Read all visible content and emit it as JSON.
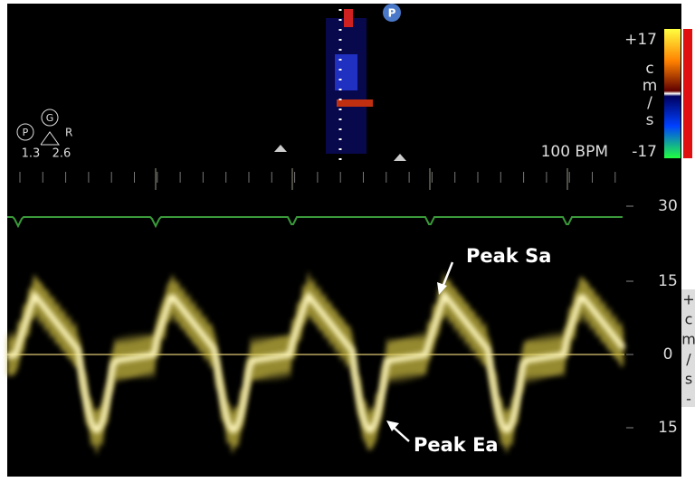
{
  "header": {
    "colorbar": {
      "max": "+17",
      "unit": [
        "c",
        "m",
        "/",
        "s"
      ],
      "min": "-17"
    },
    "heart_rate": "100 BPM",
    "probe": {
      "p": "P",
      "g": "G",
      "r": "R",
      "left": "1.3",
      "right": "2.6"
    },
    "badge": "P"
  },
  "scale": {
    "labels": [
      "30",
      "15",
      "0",
      "15"
    ],
    "unit": [
      "+",
      "c",
      "m",
      "/",
      "s",
      "-"
    ]
  },
  "annotations": {
    "sa": "Peak Sa",
    "ea": "Peak Ea"
  }
}
